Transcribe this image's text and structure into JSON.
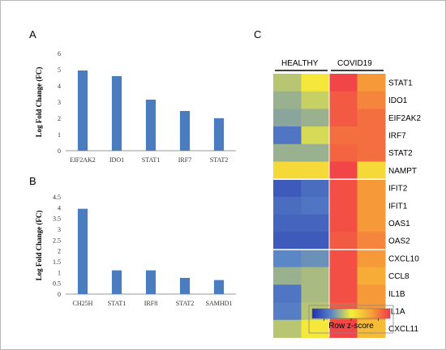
{
  "panels": {
    "a_letter": "A",
    "b_letter": "B",
    "c_letter": "C"
  },
  "colors": {
    "bar": "#4a7cc0",
    "axis": "#9a9a9a"
  },
  "chart_data": [
    {
      "panel": "A",
      "type": "bar",
      "categories": [
        "EIF2AK2",
        "IDO1",
        "STAT1",
        "IRF7",
        "STAT2"
      ],
      "values": [
        4.95,
        4.6,
        3.15,
        2.45,
        2.0
      ],
      "ylabel": "Log Fold Change (FC)",
      "ylim": [
        0,
        6
      ],
      "yticks": [
        "0",
        "1",
        "2",
        "3",
        "4",
        "5",
        "6"
      ],
      "grid": false
    },
    {
      "panel": "B",
      "type": "bar",
      "categories": [
        "CH25H",
        "STAT1",
        "IRF8",
        "STAT2",
        "SAMHD1"
      ],
      "values": [
        3.95,
        1.1,
        1.1,
        0.75,
        0.65
      ],
      "ylabel": "Log Fold Change (FC)",
      "ylim": [
        0,
        4.5
      ],
      "yticks": [
        "0",
        "0.5",
        "1",
        "1.5",
        "2",
        "2.5",
        "3",
        "3.5",
        "4",
        "4.5"
      ],
      "grid": false
    },
    {
      "panel": "C",
      "type": "heatmap",
      "groups": [
        "HEALTHY",
        "COVID19"
      ],
      "columns_per_group": 2,
      "rows": [
        "STAT1",
        "IDO1",
        "EIF2AK2",
        "IRF7",
        "STAT2",
        "NAMPT",
        "IFIT2",
        "IFIT1",
        "OAS1",
        "OAS2",
        "CXCL10",
        "CCL8",
        "IL1B",
        "IL1A",
        "CXCL11"
      ],
      "values": [
        [
          -0.2,
          0.05,
          0.95,
          0.55
        ],
        [
          -0.3,
          -0.15,
          0.85,
          0.65
        ],
        [
          -0.35,
          -0.3,
          0.85,
          0.75
        ],
        [
          -0.6,
          -0.1,
          0.75,
          0.75
        ],
        [
          -0.3,
          -0.3,
          0.8,
          0.75
        ],
        [
          0.15,
          0.15,
          0.95,
          0.15
        ],
        [
          -0.75,
          -0.65,
          0.9,
          0.55
        ],
        [
          -0.65,
          -0.6,
          0.9,
          0.55
        ],
        [
          -0.7,
          -0.7,
          0.9,
          0.55
        ],
        [
          -0.75,
          -0.75,
          0.85,
          0.65
        ],
        [
          -0.5,
          -0.45,
          0.9,
          0.55
        ],
        [
          -0.3,
          -0.25,
          0.9,
          0.45
        ],
        [
          -0.6,
          -0.25,
          0.9,
          0.55
        ],
        [
          -0.55,
          -0.2,
          0.85,
          0.55
        ],
        [
          -0.2,
          0.05,
          0.95,
          0.35
        ]
      ],
      "row_breaks_after": [
        5,
        9
      ],
      "colorbar_label": "Row z-score",
      "colorbar_colors": [
        "#1f2fb0",
        "#5c87c6",
        "#f5ef3a",
        "#f6a436",
        "#f23a49"
      ]
    }
  ]
}
